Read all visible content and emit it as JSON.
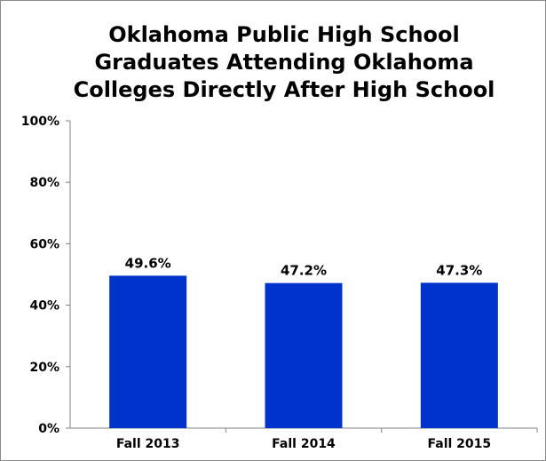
{
  "chart_data": {
    "type": "bar",
    "title_lines": [
      "Oklahoma Public High School",
      "Graduates Attending Oklahoma",
      "Colleges Directly After High School"
    ],
    "categories": [
      "Fall 2013",
      "Fall 2014",
      "Fall 2015"
    ],
    "values": [
      49.6,
      47.2,
      47.3
    ],
    "data_labels": [
      "49.6%",
      "47.2%",
      "47.3%"
    ],
    "y_ticks": [
      0,
      20,
      40,
      60,
      80,
      100
    ],
    "y_tick_labels": [
      "0%",
      "20%",
      "40%",
      "60%",
      "80%",
      "100%"
    ],
    "ylim": [
      0,
      100
    ],
    "xlabel": "",
    "ylabel": "",
    "grid": false,
    "legend": "none",
    "bar_color": "#0033cc"
  }
}
